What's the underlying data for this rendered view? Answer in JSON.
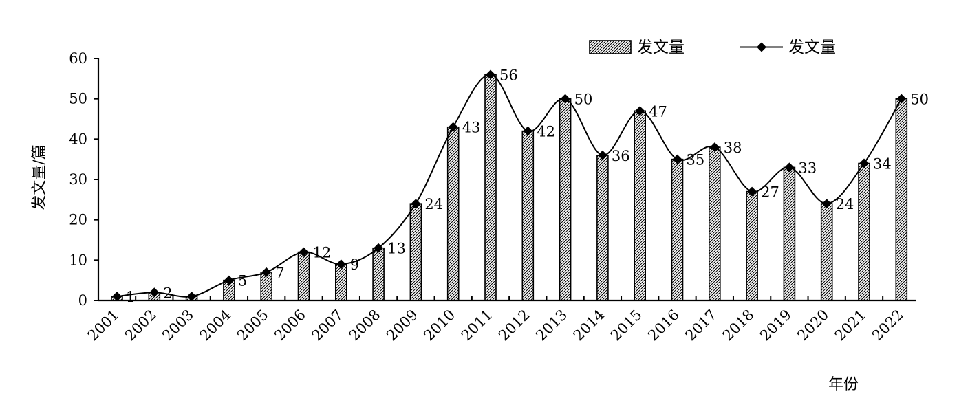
{
  "chart_data": {
    "type": "bar+line",
    "categories": [
      "2001",
      "2002",
      "2003",
      "2004",
      "2005",
      "2006",
      "2007",
      "2008",
      "2009",
      "2010",
      "2011",
      "2012",
      "2013",
      "2014",
      "2015",
      "2016",
      "2017",
      "2018",
      "2019",
      "2020",
      "2021",
      "2022"
    ],
    "series": [
      {
        "name": "发文量",
        "type": "bar",
        "values": [
          1,
          2,
          1,
          5,
          7,
          12,
          9,
          13,
          24,
          43,
          56,
          42,
          50,
          36,
          47,
          35,
          38,
          27,
          33,
          24,
          34,
          50
        ]
      },
      {
        "name": "发文量",
        "type": "line",
        "values": [
          1,
          2,
          1,
          5,
          7,
          12,
          9,
          13,
          24,
          43,
          56,
          42,
          50,
          36,
          47,
          35,
          38,
          27,
          33,
          24,
          34,
          50
        ]
      }
    ],
    "data_labels": [
      "1",
      "2",
      "",
      "5",
      "7",
      "12",
      "9",
      "13",
      "24",
      "43",
      "56",
      "42",
      "50",
      "36",
      "47",
      "35",
      "38",
      "27",
      "33",
      "24",
      "34",
      "50"
    ],
    "xlabel": "年份",
    "ylabel": "发文量/篇",
    "ylim": [
      0,
      60
    ],
    "yticks": [
      "0",
      "10",
      "20",
      "30",
      "40",
      "50",
      "60"
    ],
    "grid": false,
    "legend_position": "top-right",
    "colors": {
      "axis": "#000000",
      "bar_hatch": "#000000",
      "line": "#000000",
      "marker": "#000000"
    }
  }
}
